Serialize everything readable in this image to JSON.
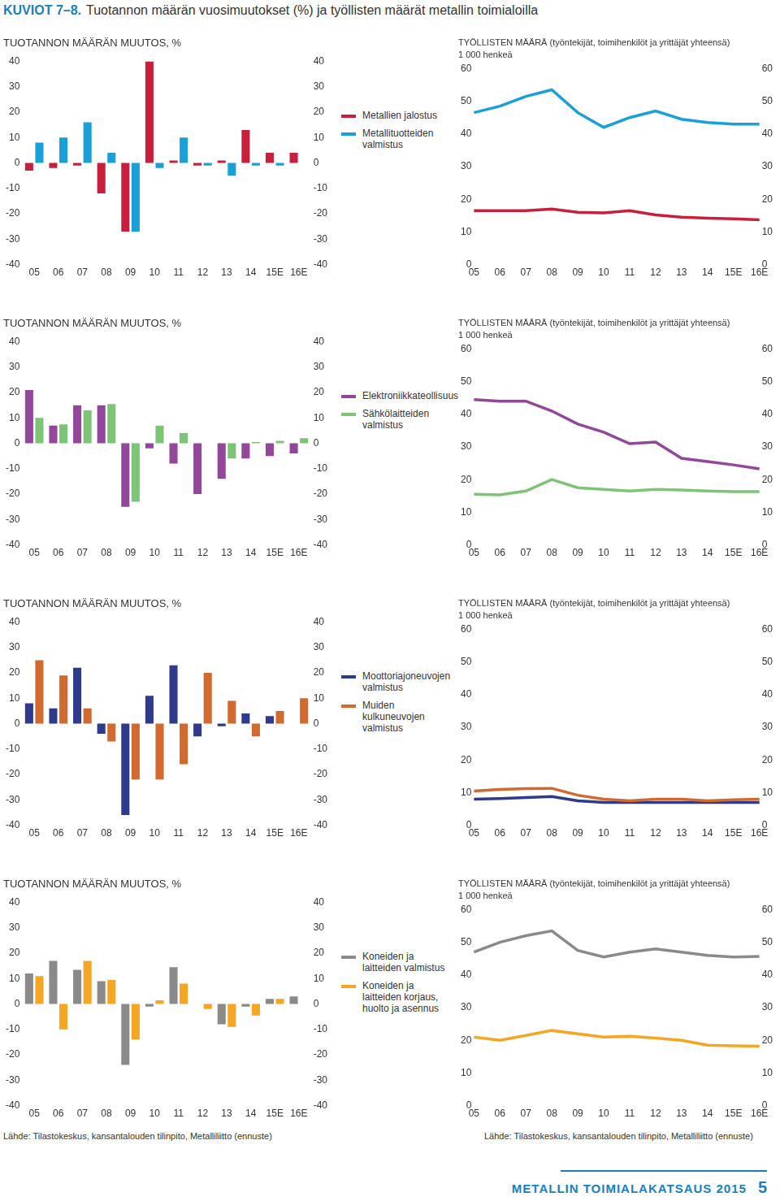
{
  "header": {
    "label": "KUVIOT 7–8.",
    "title": "Tuotannon määrän vuosimuutokset (%) ja työllisten määrät metallin toimialoilla"
  },
  "chart_data": [
    {
      "type": "bar",
      "title": "TUOTANNON MÄÄRÄN MUUTOS, %",
      "categories": [
        "05",
        "06",
        "07",
        "08",
        "09",
        "10",
        "11",
        "12",
        "13",
        "14",
        "15E",
        "16E"
      ],
      "series": [
        {
          "name": "Metallien jalostus",
          "color": "#c8203c",
          "values": [
            -3,
            -2,
            -1,
            -12,
            -27,
            40,
            1,
            -1,
            1,
            13,
            4,
            4
          ]
        },
        {
          "name": "Metallituotteiden valmistus",
          "color": "#1aa0d8",
          "values": [
            8,
            10,
            16,
            4,
            -27,
            -2,
            10,
            -1,
            -5,
            -1,
            -1,
            null
          ]
        }
      ],
      "ylim": [
        -40,
        40
      ],
      "yticks": [
        -40,
        -30,
        -20,
        -10,
        0,
        10,
        20,
        30,
        40
      ],
      "y2lim": [
        -40,
        40
      ],
      "y2ticks": [
        -40,
        -30,
        -20,
        -10,
        0,
        10,
        20,
        30,
        40
      ],
      "grid": false,
      "legend": "right"
    },
    {
      "type": "line",
      "title": "TYÖLLISTEN MÄÄRÄ (työntekijät, toimihenkilöt ja yrittäjät yhteensä)",
      "subtitle": "1 000 henkeä",
      "categories": [
        "05",
        "06",
        "07",
        "08",
        "09",
        "10",
        "11",
        "12",
        "13",
        "14",
        "15E",
        "16E"
      ],
      "series": [
        {
          "color": "#1aa0d8",
          "values": [
            46.5,
            48.5,
            51.5,
            53.5,
            46.5,
            42,
            45,
            47,
            44.5,
            43.5,
            43,
            43
          ]
        },
        {
          "color": "#c8203c",
          "values": [
            16.5,
            16.5,
            16.5,
            17,
            16,
            15.8,
            16.5,
            15.2,
            14.5,
            14.2,
            14,
            13.7
          ]
        }
      ],
      "ylim": [
        0,
        60
      ],
      "yticks": [
        0,
        10,
        20,
        30,
        40,
        50,
        60
      ],
      "y2lim": [
        0,
        60
      ],
      "y2ticks": [
        0,
        10,
        20,
        30,
        40,
        50,
        60
      ],
      "grid": false
    },
    {
      "type": "bar",
      "title": "TUOTANNON MÄÄRÄN MUUTOS, %",
      "categories": [
        "05",
        "06",
        "07",
        "08",
        "09",
        "10",
        "11",
        "12",
        "13",
        "14",
        "15E",
        "16E"
      ],
      "series": [
        {
          "name": "Elektroniikkateollisuus",
          "color": "#93479b",
          "values": [
            21,
            7,
            15,
            15,
            -25,
            -2,
            -8,
            -20,
            -14,
            -6,
            -5,
            -4
          ]
        },
        {
          "name": "Sähkölaitteiden valmistus",
          "color": "#7cc576",
          "values": [
            10,
            7.5,
            13,
            15.5,
            -23,
            7,
            4,
            null,
            -6,
            0.5,
            1,
            2
          ]
        }
      ],
      "ylim": [
        -40,
        40
      ],
      "yticks": [
        -40,
        -30,
        -20,
        -10,
        0,
        10,
        20,
        30,
        40
      ],
      "y2lim": [
        -40,
        40
      ],
      "y2ticks": [
        -40,
        -30,
        -20,
        -10,
        0,
        10,
        20,
        30,
        40
      ],
      "grid": false,
      "legend": "right"
    },
    {
      "type": "line",
      "title": "TYÖLLISTEN MÄÄRÄ (työntekijät, toimihenkilöt ja yrittäjät yhteensä)",
      "subtitle": "1 000 henkeä",
      "categories": [
        "05",
        "06",
        "07",
        "08",
        "09",
        "10",
        "11",
        "12",
        "13",
        "14",
        "15E",
        "16E"
      ],
      "series": [
        {
          "color": "#93479b",
          "values": [
            44.5,
            44,
            44,
            41,
            37,
            34.5,
            31,
            31.5,
            26.5,
            25.5,
            24.5,
            23.3
          ]
        },
        {
          "color": "#7cc576",
          "values": [
            15.5,
            15.3,
            16.5,
            20,
            17.5,
            17,
            16.5,
            17,
            16.8,
            16.5,
            16.3,
            16.3
          ]
        }
      ],
      "ylim": [
        0,
        60
      ],
      "yticks": [
        0,
        10,
        20,
        30,
        40,
        50,
        60
      ],
      "y2lim": [
        0,
        60
      ],
      "y2ticks": [
        0,
        10,
        20,
        30,
        40,
        50,
        60
      ],
      "grid": false
    },
    {
      "type": "bar",
      "title": "TUOTANNON MÄÄRÄN MUUTOS, %",
      "categories": [
        "05",
        "06",
        "07",
        "08",
        "09",
        "10",
        "11",
        "12",
        "13",
        "14",
        "15E",
        "16E"
      ],
      "series": [
        {
          "name": "Moottoriajoneuvojen valmistus",
          "color": "#2e3a8c",
          "values": [
            8,
            6,
            22,
            -4,
            -36,
            11,
            23,
            -5,
            -1,
            4,
            3,
            null
          ]
        },
        {
          "name": "Muiden kulkuneuvojen valmistus",
          "color": "#d2692e",
          "values": [
            25,
            19,
            6,
            -7,
            -22,
            -22,
            -16,
            20,
            9,
            -5,
            5,
            10
          ]
        }
      ],
      "ylim": [
        -40,
        40
      ],
      "yticks": [
        -40,
        -30,
        -20,
        -10,
        0,
        10,
        20,
        30,
        40
      ],
      "y2lim": [
        -40,
        40
      ],
      "y2ticks": [
        -40,
        -30,
        -20,
        -10,
        0,
        10,
        20,
        30,
        40
      ],
      "grid": false,
      "legend": "right"
    },
    {
      "type": "line",
      "title": "TYÖLLISTEN MÄÄRÄ (työntekijät, toimihenkilöt ja yrittäjät yhteensä)",
      "subtitle": "1 000 henkeä",
      "categories": [
        "05",
        "06",
        "07",
        "08",
        "09",
        "10",
        "11",
        "12",
        "13",
        "14",
        "15E",
        "16E"
      ],
      "series": [
        {
          "color": "#d2692e",
          "values": [
            10.5,
            11,
            11.2,
            11.3,
            9.2,
            8,
            7.5,
            8,
            8,
            7.5,
            7.8,
            8
          ]
        },
        {
          "color": "#2e3a8c",
          "values": [
            8,
            8.2,
            8.5,
            8.8,
            7.5,
            7,
            7,
            7,
            7,
            7,
            7,
            7
          ]
        }
      ],
      "ylim": [
        0,
        60
      ],
      "yticks": [
        0,
        10,
        20,
        30,
        40,
        50,
        60
      ],
      "y2lim": [
        0,
        60
      ],
      "y2ticks": [
        0,
        10,
        20,
        30,
        40,
        50,
        60
      ],
      "grid": false
    },
    {
      "type": "bar",
      "title": "TUOTANNON MÄÄRÄN MUUTOS, %",
      "categories": [
        "05",
        "06",
        "07",
        "08",
        "09",
        "10",
        "11",
        "12",
        "13",
        "14",
        "15E",
        "16E"
      ],
      "series": [
        {
          "name": "Koneiden ja laitteiden valmistus",
          "color": "#8a8a8a",
          "values": [
            12,
            17,
            13.5,
            9,
            -24,
            -1,
            14.5,
            0,
            -8,
            -1,
            2,
            3
          ]
        },
        {
          "name": "Koneiden ja laitteiden korjaus, huolto ja asennus",
          "color": "#f5a623",
          "values": [
            11,
            -10,
            17,
            9.5,
            -14,
            1.5,
            8,
            -2,
            -9,
            -4.5,
            2,
            null
          ]
        }
      ],
      "ylim": [
        -40,
        40
      ],
      "yticks": [
        -40,
        -30,
        -20,
        -10,
        0,
        10,
        20,
        30,
        40
      ],
      "y2lim": [
        -40,
        40
      ],
      "y2ticks": [
        -40,
        -30,
        -20,
        -10,
        0,
        10,
        20,
        30,
        40
      ],
      "grid": false,
      "legend": "right"
    },
    {
      "type": "line",
      "title": "TYÖLLISTEN MÄÄRÄ (työntekijät, toimihenkilöt ja yrittäjät yhteensä)",
      "subtitle": "1 000 henkeä",
      "categories": [
        "05",
        "06",
        "07",
        "08",
        "09",
        "10",
        "11",
        "12",
        "13",
        "14",
        "15E",
        "16E"
      ],
      "series": [
        {
          "color": "#8a8a8a",
          "values": [
            47,
            50,
            52,
            53.5,
            47.5,
            45.5,
            47,
            48,
            47,
            46,
            45.5,
            45.7
          ]
        },
        {
          "color": "#f5a623",
          "values": [
            21,
            20,
            21.5,
            23,
            22,
            21,
            21.2,
            20.7,
            20,
            18.5,
            18.3,
            18.2
          ]
        }
      ],
      "ylim": [
        0,
        60
      ],
      "yticks": [
        0,
        10,
        20,
        30,
        40,
        50,
        60
      ],
      "y2lim": [
        0,
        60
      ],
      "y2ticks": [
        0,
        10,
        20,
        30,
        40,
        50,
        60
      ],
      "grid": false
    }
  ],
  "sources": [
    "Lähde: Tilastokeskus, kansantalouden tilinpito, Metalliliitto (ennuste)",
    "Lähde: Tilastokeskus, kansantalouden tilinpito, Metalliliitto (ennuste)"
  ],
  "footer": {
    "publication": "METALLIN TOIMIALAKATSAUS 2015",
    "page": 5
  }
}
